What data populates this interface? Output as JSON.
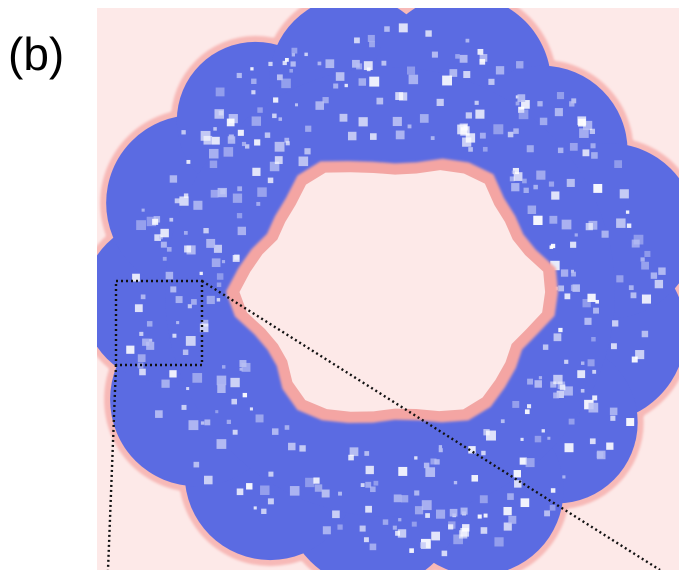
{
  "label": "(b)"
}
